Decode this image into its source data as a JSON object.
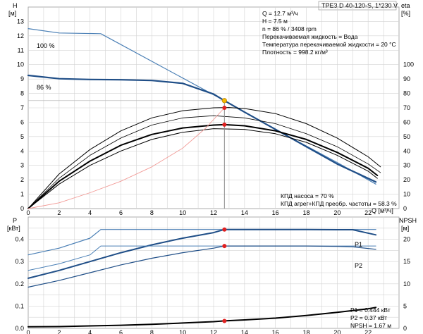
{
  "header": {
    "title": "TPE3 D 40-120-S, 1*230 V"
  },
  "info": {
    "lines": [
      "Q = 12.7 м³/ч",
      "H = 7.5 м",
      "n = 86 % / 3408 rpm",
      "Перекачиваемая жидкость = Вода",
      "Температура перекачиваемой жидкости = 20 °C",
      "Плотность = 998.2 кг/м³"
    ],
    "efficiency_lines": [
      "КПД насоса = 70 %",
      "КПД агрег+КПД преобр. частоты = 58.3 %"
    ],
    "power_lines": [
      "P1 = 0.444 кВт",
      "P2 = 0.37 кВт",
      "NPSH = 1.67 м"
    ]
  },
  "units": {
    "h_left_top": "H",
    "h_left_bottom": "[м]",
    "eta_top": "eta",
    "eta_bottom": "[%]",
    "q": "Q [м³/ч]",
    "p_top": "P",
    "p_bottom": "[кВт]",
    "npsh_top": "NPSH",
    "npsh_bottom": "[м]"
  },
  "colors": {
    "blue": "#1f4e87",
    "blue_light": "#4a7fb5",
    "red": "#e8413c",
    "red_light": "#f29a96",
    "grid": "#d3d3d3",
    "marker_orange": "#f5b800",
    "marker_red": "#e02020"
  },
  "chart_data": [
    {
      "type": "line",
      "name": "head-efficiency",
      "xlim": [
        0,
        24
      ],
      "xticks": [
        0,
        2,
        4,
        6,
        8,
        10,
        12,
        14,
        16,
        18,
        20,
        22
      ],
      "ylim_left": [
        0,
        14
      ],
      "yticks_left": [
        0,
        1,
        2,
        3,
        4,
        5,
        6,
        7,
        8,
        9,
        10,
        11,
        12,
        13
      ],
      "ylim_right": [
        0,
        140
      ],
      "yticks_right": [
        0,
        10,
        20,
        30,
        40,
        50,
        60,
        70,
        80,
        90,
        100
      ],
      "series": [
        {
          "name": "100 %",
          "axis": "left",
          "color": "blue_light",
          "width": 1.2,
          "points": [
            [
              0,
              12.5
            ],
            [
              2,
              12.2
            ],
            [
              4.7,
              12.15
            ],
            [
              12.7,
              7.5
            ],
            [
              16,
              5.5
            ],
            [
              20,
              3.2
            ],
            [
              22.5,
              1.7
            ]
          ]
        },
        {
          "name": "86 %",
          "axis": "left",
          "color": "blue",
          "width": 2.2,
          "points": [
            [
              0,
              9.25
            ],
            [
              2,
              9.02
            ],
            [
              4,
              8.97
            ],
            [
              6,
              8.95
            ],
            [
              8,
              8.9
            ],
            [
              10,
              8.7
            ],
            [
              12,
              7.95
            ],
            [
              12.7,
              7.5
            ],
            [
              14,
              6.7
            ],
            [
              16,
              5.5
            ],
            [
              18,
              4.3
            ],
            [
              20,
              3.1
            ],
            [
              22.5,
              1.85
            ]
          ]
        },
        {
          "axis": "right",
          "color": "black",
          "width": 1.0,
          "points": [
            [
              0,
              0
            ],
            [
              2,
              24
            ],
            [
              4,
              41
            ],
            [
              6,
              54
            ],
            [
              8,
              63
            ],
            [
              10,
              68
            ],
            [
              12,
              70
            ],
            [
              13,
              70.2
            ],
            [
              14,
              69.5
            ],
            [
              16,
              66
            ],
            [
              18,
              59
            ],
            [
              20,
              49
            ],
            [
              22,
              36
            ],
            [
              22.8,
              29
            ]
          ]
        },
        {
          "axis": "right",
          "color": "black",
          "width": 0.8,
          "points": [
            [
              0,
              0
            ],
            [
              2,
              21
            ],
            [
              4,
              37
            ],
            [
              6,
              49
            ],
            [
              8,
              58
            ],
            [
              10,
              63
            ],
            [
              12,
              64.5
            ],
            [
              14,
              63
            ],
            [
              16,
              59
            ],
            [
              18,
              52
            ],
            [
              20,
              43
            ],
            [
              22,
              31
            ],
            [
              22.8,
              25
            ]
          ]
        },
        {
          "axis": "right",
          "color": "black",
          "width": 2.0,
          "points": [
            [
              0,
              0
            ],
            [
              2,
              19
            ],
            [
              4,
              33
            ],
            [
              6,
              44
            ],
            [
              8,
              51.5
            ],
            [
              10,
              56
            ],
            [
              12,
              58
            ],
            [
              12.7,
              58.3
            ],
            [
              14,
              57.5
            ],
            [
              16,
              54
            ],
            [
              18,
              48
            ],
            [
              20,
              39
            ],
            [
              22,
              28
            ],
            [
              22.6,
              23
            ]
          ]
        },
        {
          "axis": "right",
          "color": "black",
          "width": 1.0,
          "points": [
            [
              0,
              0
            ],
            [
              2,
              17
            ],
            [
              4,
              30
            ],
            [
              6,
              40
            ],
            [
              8,
              48
            ],
            [
              10,
              53
            ],
            [
              12,
              55.5
            ],
            [
              14,
              55
            ],
            [
              16,
              52
            ],
            [
              18,
              46
            ],
            [
              20,
              37
            ],
            [
              22,
              26
            ],
            [
              22.6,
              21
            ]
          ]
        },
        {
          "axis": "right",
          "color": "red_light",
          "width": 0.9,
          "points": [
            [
              0,
              0
            ],
            [
              2,
              4
            ],
            [
              4,
              11
            ],
            [
              6,
              19
            ],
            [
              8,
              29
            ],
            [
              10,
              42
            ],
            [
              11.5,
              56
            ],
            [
              12.7,
              70
            ]
          ]
        }
      ],
      "operating_point": {
        "q": 12.7,
        "h": 7.5,
        "eta_pump": 70,
        "eta_total": 58.3
      }
    },
    {
      "type": "line",
      "name": "power-npsh",
      "xlim": [
        0,
        24
      ],
      "xticks": [
        0,
        2,
        4,
        6,
        8,
        10,
        12,
        14,
        16,
        18,
        20,
        22
      ],
      "ylim_left": [
        0,
        0.5
      ],
      "yticks_left": [
        0.0,
        0.1,
        0.2,
        0.3,
        0.4
      ],
      "ylim_right": [
        0,
        25
      ],
      "yticks_right": [
        0,
        5,
        10,
        15,
        20
      ],
      "series": [
        {
          "name": "P1",
          "axis": "left",
          "color": "blue_light",
          "width": 1.2,
          "points": [
            [
              0,
              0.33
            ],
            [
              2,
              0.36
            ],
            [
              4,
              0.405
            ],
            [
              4.7,
              0.444
            ],
            [
              22.5,
              0.444
            ]
          ]
        },
        {
          "axis": "left",
          "color": "blue",
          "width": 2.0,
          "points": [
            [
              0,
              0.225
            ],
            [
              2,
              0.26
            ],
            [
              4,
              0.3
            ],
            [
              6,
              0.34
            ],
            [
              8,
              0.375
            ],
            [
              10,
              0.405
            ],
            [
              12,
              0.43
            ],
            [
              12.7,
              0.444
            ],
            [
              14,
              0.444
            ],
            [
              16,
              0.444
            ],
            [
              18,
              0.444
            ],
            [
              20,
              0.443
            ],
            [
              21,
              0.443
            ],
            [
              22.5,
              0.42
            ]
          ]
        },
        {
          "name": "P2",
          "axis": "left",
          "color": "blue_light",
          "width": 1.0,
          "points": [
            [
              0,
              0.26
            ],
            [
              2,
              0.29
            ],
            [
              4,
              0.33
            ],
            [
              4.7,
              0.37
            ],
            [
              22.5,
              0.37
            ]
          ]
        },
        {
          "axis": "left",
          "color": "blue",
          "width": 1.2,
          "points": [
            [
              0,
              0.185
            ],
            [
              2,
              0.215
            ],
            [
              4,
              0.25
            ],
            [
              6,
              0.285
            ],
            [
              8,
              0.315
            ],
            [
              10,
              0.34
            ],
            [
              12,
              0.36
            ],
            [
              12.7,
              0.37
            ],
            [
              14,
              0.37
            ],
            [
              16,
              0.37
            ],
            [
              18,
              0.37
            ],
            [
              20,
              0.368
            ],
            [
              21,
              0.366
            ],
            [
              22.5,
              0.355
            ]
          ]
        },
        {
          "axis": "right",
          "color": "black",
          "width": 2.0,
          "points": [
            [
              0,
              0.35
            ],
            [
              2,
              0.4
            ],
            [
              4,
              0.55
            ],
            [
              6,
              0.7
            ],
            [
              8,
              0.9
            ],
            [
              10,
              1.2
            ],
            [
              12,
              1.5
            ],
            [
              12.7,
              1.67
            ],
            [
              14,
              1.9
            ],
            [
              16,
              2.3
            ],
            [
              18,
              2.9
            ],
            [
              20,
              3.6
            ],
            [
              22,
              4.4
            ],
            [
              22.5,
              4.7
            ]
          ]
        }
      ],
      "operating_point": {
        "q": 12.7,
        "p1": 0.444,
        "p2": 0.37,
        "npsh": 1.67
      }
    }
  ],
  "curve_labels": [
    {
      "text": "100 %"
    },
    {
      "text": "86 %"
    },
    {
      "text": "P1"
    },
    {
      "text": "P2"
    }
  ]
}
